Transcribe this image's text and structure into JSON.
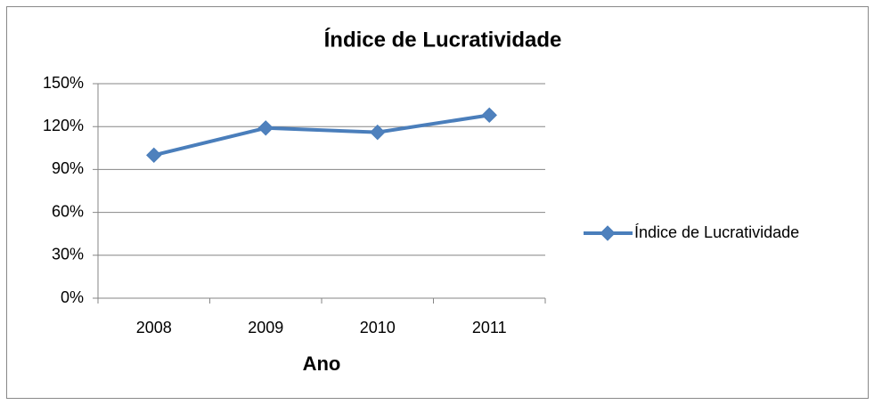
{
  "chart_data": {
    "type": "line",
    "title": "Índice de Lucratividade",
    "x_label": "Ano",
    "categories": [
      "2008",
      "2009",
      "2010",
      "2011"
    ],
    "series": [
      {
        "name": "Índice de Lucratividade",
        "color": "#4a7ebb",
        "values": [
          100,
          119,
          116,
          128
        ]
      }
    ],
    "ylim": [
      0,
      150
    ],
    "yticks": [
      {
        "value": 0,
        "label": "0%"
      },
      {
        "value": 30,
        "label": "30%"
      },
      {
        "value": 60,
        "label": "60%"
      },
      {
        "value": 90,
        "label": "90%"
      },
      {
        "value": 120,
        "label": "120%"
      },
      {
        "value": 150,
        "label": "150%"
      }
    ],
    "grid": true,
    "legend": "right"
  }
}
